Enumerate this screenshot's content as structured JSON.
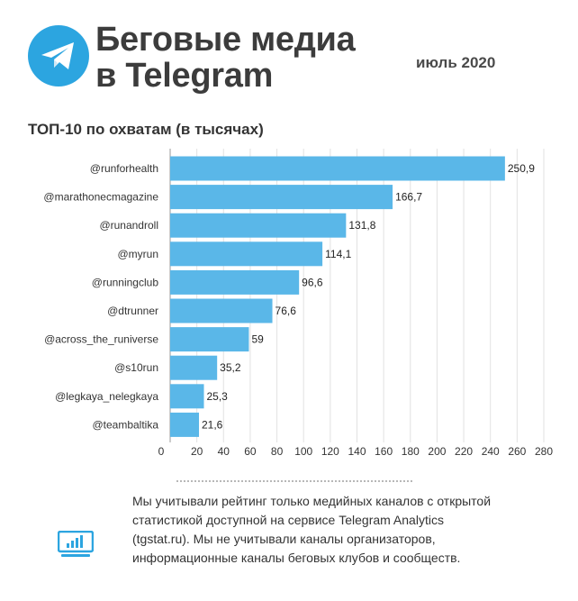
{
  "header": {
    "title_line1": "Беговые медиа",
    "title_line2": "в Telegram",
    "date": "июль 2020"
  },
  "colors": {
    "accent": "#2ca5e0",
    "bar": "#5ab7e8",
    "title": "#3c3c3c"
  },
  "icons": {
    "logo": "telegram-logo-icon",
    "note": "bar-chart-monitor-icon"
  },
  "chart_data": {
    "type": "bar",
    "orientation": "horizontal",
    "title": "ТОП-10 по охватам (в тысячах)",
    "categories": [
      "@runforhealth",
      "@marathonecmagazine",
      "@runandroll",
      "@myrun",
      "@runningclub",
      "@dtrunner",
      "@across_the_runiverse",
      "@s10run",
      "@legkaya_nelegkaya",
      "@teambaltika"
    ],
    "values": [
      250.9,
      166.7,
      131.8,
      114.1,
      96.6,
      76.6,
      59,
      35.2,
      25.3,
      21.6
    ],
    "value_labels": [
      "250,9",
      "166,7",
      "131,8",
      "114,1",
      "96,6",
      "76,6",
      "59",
      "35,2",
      "25,3",
      "21,6"
    ],
    "xlim": [
      0,
      280
    ],
    "x_ticks": [
      0,
      20,
      40,
      60,
      80,
      100,
      120,
      140,
      160,
      180,
      200,
      220,
      240,
      260,
      280
    ],
    "grid": true,
    "xlabel": "",
    "ylabel": ""
  },
  "note": {
    "text": "Мы учитывали рейтинг только медийных каналов с открытой статистикой доступной на сервисе Telegram Analytics (tgstat.ru). Мы не учитывали каналы организаторов, информационные каналы беговых клубов и сообществ."
  }
}
